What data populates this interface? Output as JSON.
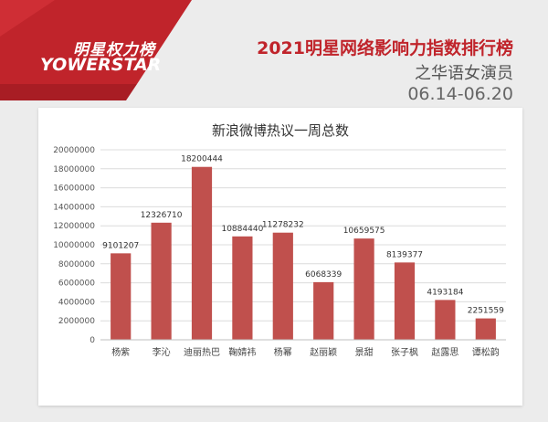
{
  "header": {
    "logo_cn": "明星权力榜",
    "logo_en": "YOWERSTAR",
    "title": "2021明星网络影响力指数排行榜",
    "subtitle": "之华语女演员",
    "date_range": "06.14-06.20"
  },
  "colors": {
    "brand_red": "#c0242b",
    "bar": "#c0504d"
  },
  "chart_data": {
    "type": "bar",
    "title": "新浪微博热议一周总数",
    "categories": [
      "杨紫",
      "李沁",
      "迪丽热巴",
      "鞠婧祎",
      "杨幂",
      "赵丽颖",
      "景甜",
      "张子枫",
      "赵露思",
      "谭松韵"
    ],
    "values": [
      9101207,
      12326710,
      18200444,
      10884440,
      11278232,
      6068339,
      10659575,
      8139377,
      4193184,
      2251559
    ],
    "value_labels": [
      "9101207",
      "12326710",
      "18200444",
      "10884440",
      "11278232",
      "6068339",
      "10659575",
      "8139377",
      "4193184",
      "2251559"
    ],
    "ylim": [
      0,
      20000000
    ],
    "yticks": [
      0,
      2000000,
      4000000,
      6000000,
      8000000,
      10000000,
      12000000,
      14000000,
      16000000,
      18000000,
      20000000
    ],
    "ytick_labels": [
      "0",
      "2000000",
      "4000000",
      "6000000",
      "8000000",
      "10000000",
      "12000000",
      "14000000",
      "16000000",
      "18000000",
      "20000000"
    ],
    "grid": true,
    "xlabel": "",
    "ylabel": ""
  }
}
